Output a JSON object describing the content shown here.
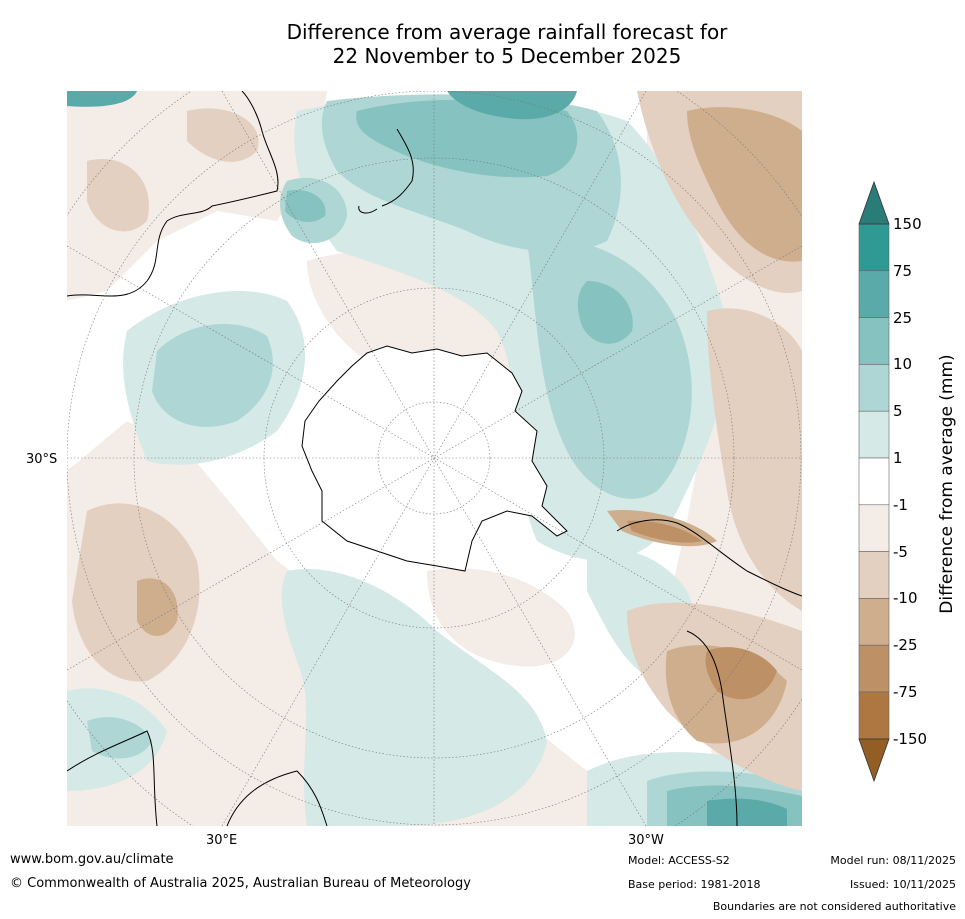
{
  "title": {
    "line1": "Difference from average rainfall forecast for",
    "line2": "22 November to 5 December 2025"
  },
  "map": {
    "projection": "south-polar stereographic",
    "labels": {
      "lat_30s": "30°S",
      "lon_30e": "30°E",
      "lon_30w": "30°W"
    }
  },
  "colorbar": {
    "title": "Difference from average (mm)",
    "ticks": [
      "150",
      "75",
      "25",
      "10",
      "5",
      "1",
      "-1",
      "-5",
      "-10",
      "-25",
      "-75",
      "-150"
    ],
    "colors": {
      "top_extend": "#2a7c78",
      "c75_150": "#2f9994",
      "c25_75": "#59aaa8",
      "c10_25": "#86c2bf",
      "c5_10": "#aed6d4",
      "c1_5": "#d5e9e7",
      "c_neg1_1": "#ffffff",
      "c_neg5_neg1": "#f4ece6",
      "c_neg10_neg5": "#e3d0c0",
      "c_neg25_neg10": "#cfae8d",
      "c_neg75_neg25": "#bd9066",
      "c_neg150_neg75": "#ad7741",
      "bottom_extend": "#935e24"
    }
  },
  "footer": {
    "website": "www.bom.gov.au/climate",
    "copyright": "© Commonwealth of Australia 2025, Australian Bureau of Meteorology",
    "model": "Model: ACCESS-S2",
    "base_period": "Base period: 1981-2018",
    "model_run": "Model run: 08/11/2025",
    "issued": "Issued: 10/11/2025",
    "disclaimer": "Boundaries are not considered authoritative"
  }
}
